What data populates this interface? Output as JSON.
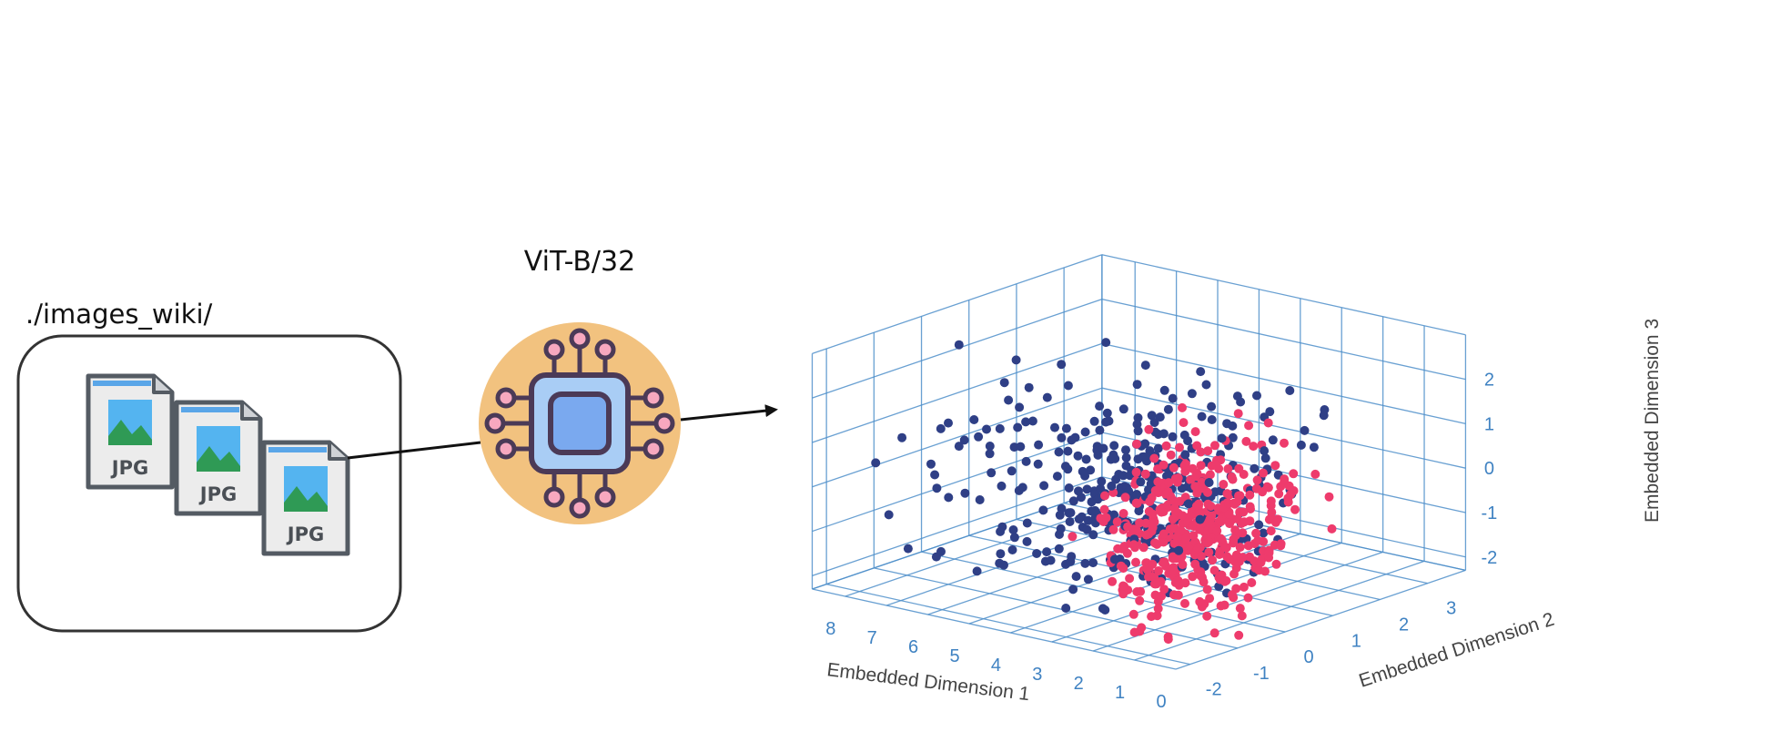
{
  "folder_label": "./images_wiki/",
  "model_label": "ViT-B/32",
  "file_label": "JPG",
  "colors": {
    "series_a": "#2f3f86",
    "series_b": "#ee3b6c",
    "grid": "#4f8fca",
    "chip_bg": "#f2c27f",
    "chip_body": "#8fb8f2",
    "chip_outline": "#4b3a57",
    "pin": "#f7a8bf"
  },
  "chart_data": {
    "type": "scatter",
    "xlabel": "Embedded Dimension 1",
    "ylabel": "Embedded Dimension 2",
    "zlabel": "Embedded Dimension 3",
    "x_ticks": [
      "8",
      "7",
      "6",
      "5",
      "4",
      "3",
      "2",
      "1",
      "0"
    ],
    "y_ticks": [
      "3",
      "2",
      "1",
      "0",
      "-1",
      "-2"
    ],
    "z_ticks": [
      "2",
      "1",
      "0",
      "-1",
      "-2"
    ],
    "xlim": [
      0,
      8.8
    ],
    "ylim": [
      -2.3,
      3.8
    ],
    "zlim": [
      -2.3,
      3
    ],
    "series": [
      {
        "color": "#2f3f86",
        "points": 380
      },
      {
        "color": "#ee3b6c",
        "points": 430
      }
    ]
  }
}
